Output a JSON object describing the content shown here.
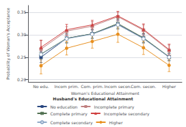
{
  "chart_data": {
    "type": "line",
    "x_title": "Woman's Educational Attainment",
    "y_title": "Probability of Woman's Acceptance",
    "categories": [
      "No edu.",
      "Incom prim.",
      "Com. prim.",
      "Incom secon.",
      "Com. secon.",
      "Higher"
    ],
    "ylim": [
      0.195,
      0.365
    ],
    "yticks": [
      {
        "value": 0.2,
        "label": "0.20"
      },
      0.25,
      {
        "value": 0.3,
        "label": "0.30"
      },
      0.35
    ],
    "grid": true,
    "legend": "bottom",
    "legend_title": "Husband's Educational Attainment",
    "series": [
      {
        "name": "No education",
        "color": "#2a4880",
        "marker": "square",
        "line_style": "solid",
        "values": [
          0.25,
          0.292,
          0.302,
          0.323,
          0.292,
          0.25
        ],
        "errors": [
          0.012,
          0.01,
          0.01,
          0.01,
          0.01,
          0.008
        ]
      },
      {
        "name": "Incomplete primary",
        "color": "#c08080",
        "marker": "square",
        "line_style": "solid",
        "values": [
          0.268,
          0.308,
          0.319,
          0.34,
          0.31,
          0.265
        ],
        "errors": [
          0.02,
          0.01,
          0.01,
          0.01,
          0.012,
          0.012
        ]
      },
      {
        "name": "Complete primary",
        "color": "#507050",
        "marker": "x",
        "line_style": "solid",
        "values": [
          0.257,
          0.292,
          0.302,
          0.325,
          0.293,
          0.251
        ],
        "errors": [
          0.012,
          0.01,
          0.01,
          0.01,
          0.01,
          0.008
        ]
      },
      {
        "name": "Incomplete secondary",
        "color": "#d04040",
        "marker": "triangle",
        "line_style": "solid",
        "values": [
          0.272,
          0.311,
          0.322,
          0.342,
          0.312,
          0.267
        ],
        "errors": [
          0.015,
          0.012,
          0.01,
          0.01,
          0.012,
          0.012
        ]
      },
      {
        "name": "Complete secondary",
        "color": "#90aac8",
        "marker": "open_circle",
        "line_style": "solid",
        "values": [
          0.256,
          0.291,
          0.301,
          0.322,
          0.291,
          0.25
        ],
        "errors": [
          0.012,
          0.01,
          0.01,
          0.01,
          0.01,
          0.008
        ]
      },
      {
        "name": "Higher",
        "color": "#e89020",
        "marker": "circle",
        "line_style": "solid",
        "values": [
          0.231,
          0.27,
          0.285,
          0.301,
          0.271,
          0.232
        ],
        "errors": [
          0.018,
          0.015,
          0.015,
          0.018,
          0.015,
          0.014
        ]
      }
    ]
  }
}
